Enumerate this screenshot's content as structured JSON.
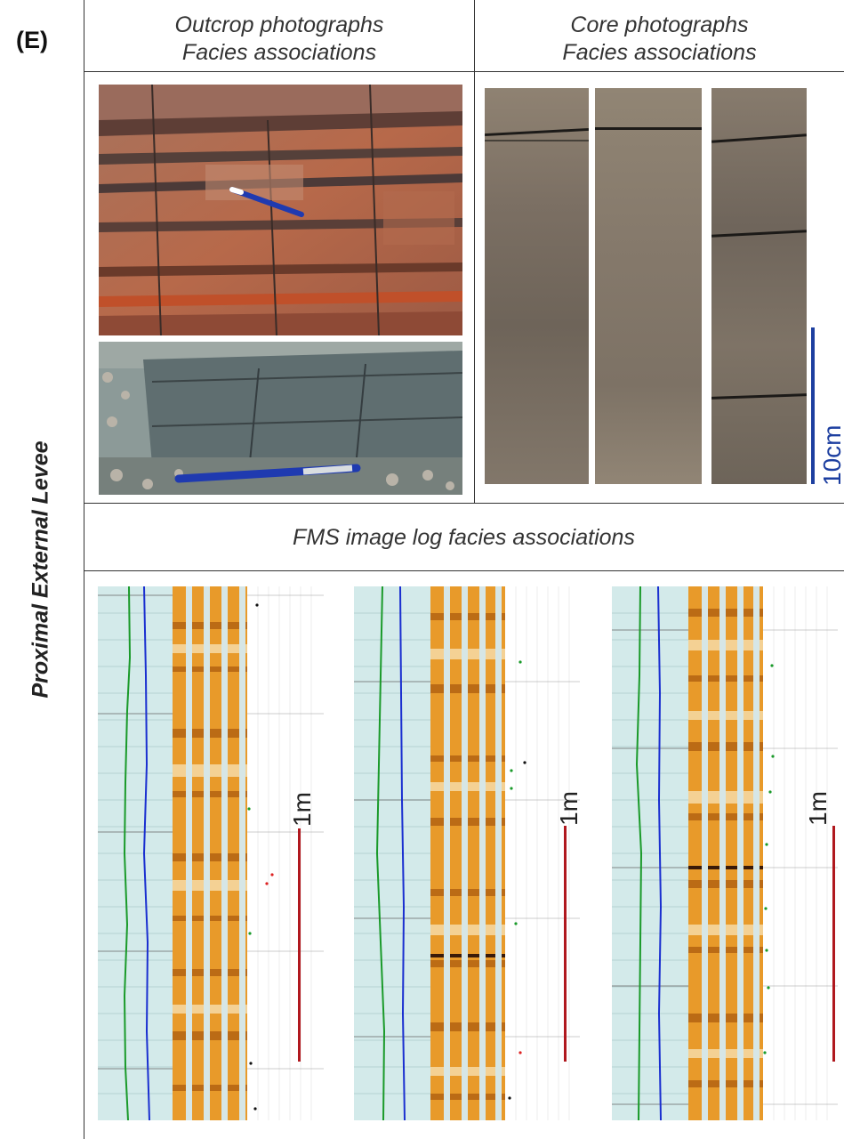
{
  "panel_label": "(E)",
  "side_title": "Proximal External Levee",
  "headers": {
    "outcrop": [
      "Outcrop photographs",
      "Facies associations"
    ],
    "core": [
      "Core photographs",
      "Facies associations"
    ],
    "fms": "FMS image log facies associations"
  },
  "core_scale_label": "10cm",
  "log_scale_label": "1m",
  "colors": {
    "scale_blue": "#1d3fa0",
    "scale_red": "#b0181e",
    "gamma_green": "#1a9a2a",
    "curve_blue": "#1a2fd0",
    "track_bg": "#d3eaea",
    "fms_orange": "#e89a2a"
  }
}
